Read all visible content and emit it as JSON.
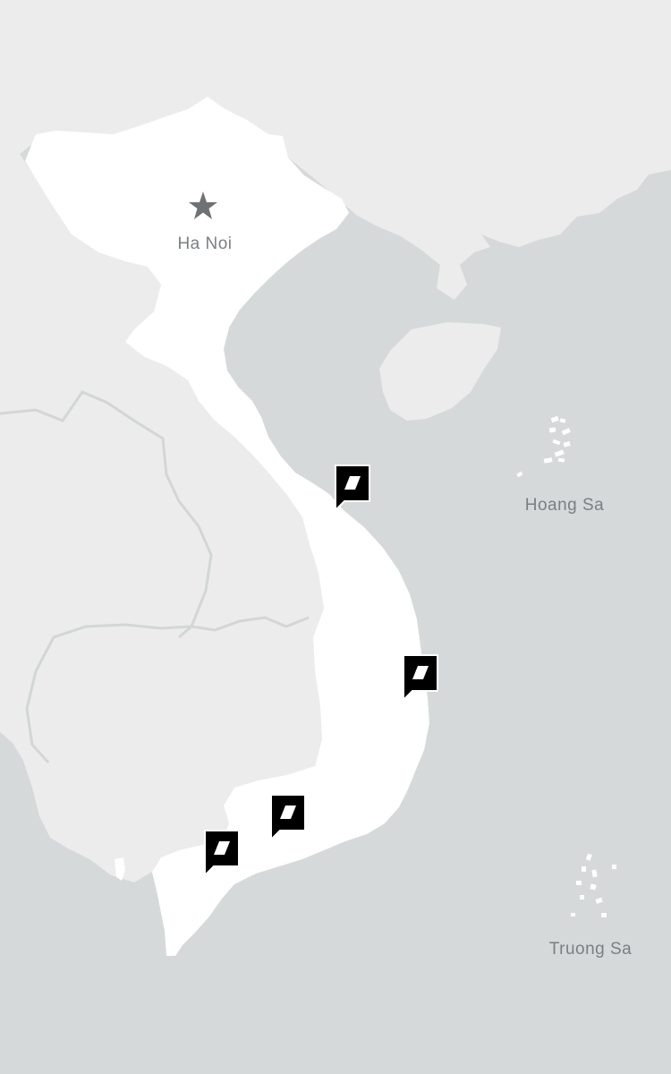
{
  "map": {
    "colors": {
      "sea": "#d6d9da",
      "neighbor_land": "#ececec",
      "border_line": "#d3d6d6",
      "vietnam_land": "#ffffff",
      "capital_star": "#6f7274",
      "label": "#7b7f82",
      "marker_fill": "#000000",
      "marker_glyph": "#ffffff"
    },
    "capital": {
      "label": "Ha Noi",
      "icon": "star-icon"
    },
    "archipelagos": [
      {
        "label": "Hoang Sa"
      },
      {
        "label": "Truong Sa"
      }
    ],
    "markers": [
      {
        "id": "marker-central-north",
        "icon": "location-pin-icon"
      },
      {
        "id": "marker-central-coast",
        "icon": "location-pin-icon"
      },
      {
        "id": "marker-south-east",
        "icon": "location-pin-icon"
      },
      {
        "id": "marker-mekong-delta",
        "icon": "location-pin-icon"
      }
    ]
  }
}
